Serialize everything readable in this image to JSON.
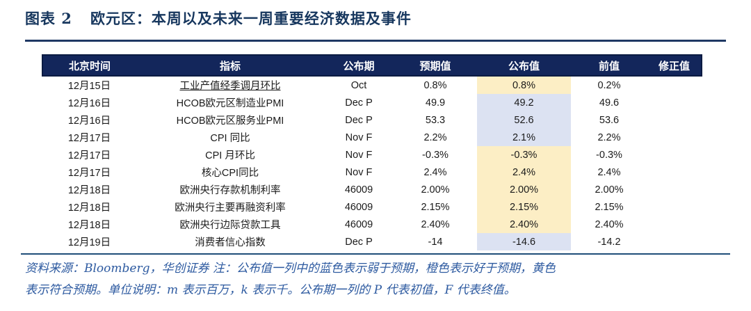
{
  "title": {
    "chart_label": "图表 2",
    "text": "欧元区：本周以及未来一周重要经济数据及事件"
  },
  "colors": {
    "header_bg": "#13265B",
    "title_text": "#17375E",
    "rule": "#1F3864",
    "footnote_text": "#2D5AA0",
    "highlight_meets_expectation": "#FCEEC5",
    "highlight_weaker_than_expectation": "#DCE2F2"
  },
  "table": {
    "columns": [
      "北京时间",
      "指标",
      "公布期",
      "预期值",
      "公布值",
      "前值",
      "修正值"
    ],
    "rows": [
      {
        "date": "12月15日",
        "indicator": "工业产值经季调月环比",
        "indicator_class": "u",
        "period": "Oct",
        "expected": "0.8%",
        "actual": "0.8%",
        "actual_class": "hl-yellow",
        "previous": "0.2%",
        "revised": ""
      },
      {
        "date": "12月16日",
        "indicator": "HCOB欧元区制造业PMI",
        "indicator_class": "",
        "period": "Dec P",
        "expected": "49.9",
        "actual": "49.2",
        "actual_class": "hl-blue",
        "previous": "49.6",
        "revised": ""
      },
      {
        "date": "12月16日",
        "indicator": "HCOB欧元区服务业PMI",
        "indicator_class": "",
        "period": "Dec P",
        "expected": "53.3",
        "actual": "52.6",
        "actual_class": "hl-blue",
        "previous": "53.6",
        "revised": ""
      },
      {
        "date": "12月17日",
        "indicator": "CPI 同比",
        "indicator_class": "",
        "period": "Nov F",
        "expected": "2.2%",
        "actual": "2.1%",
        "actual_class": "hl-blue",
        "previous": "2.2%",
        "revised": ""
      },
      {
        "date": "12月17日",
        "indicator": "CPI 月环比",
        "indicator_class": "",
        "period": "Nov F",
        "expected": "-0.3%",
        "actual": "-0.3%",
        "actual_class": "hl-yellow",
        "previous": "-0.3%",
        "revised": ""
      },
      {
        "date": "12月17日",
        "indicator": "核心CPI同比",
        "indicator_class": "",
        "period": "Nov F",
        "expected": "2.4%",
        "actual": "2.4%",
        "actual_class": "hl-yellow",
        "previous": "2.4%",
        "revised": ""
      },
      {
        "date": "12月18日",
        "indicator": "欧洲央行存款机制利率",
        "indicator_class": "",
        "period": "46009",
        "expected": "2.00%",
        "actual": "2.00%",
        "actual_class": "hl-yellow",
        "previous": "2.00%",
        "revised": ""
      },
      {
        "date": "12月18日",
        "indicator": "欧洲央行主要再融资利率",
        "indicator_class": "",
        "period": "46009",
        "expected": "2.15%",
        "actual": "2.15%",
        "actual_class": "hl-yellow",
        "previous": "2.15%",
        "revised": ""
      },
      {
        "date": "12月18日",
        "indicator": "欧洲央行边际贷款工具",
        "indicator_class": "",
        "period": "46009",
        "expected": "2.40%",
        "actual": "2.40%",
        "actual_class": "hl-yellow",
        "previous": "2.40%",
        "revised": ""
      },
      {
        "date": "12月19日",
        "indicator": "消费者信心指数",
        "indicator_class": "",
        "period": "Dec P",
        "expected": "-14",
        "actual": "-14.6",
        "actual_class": "hl-blue",
        "previous": "-14.2",
        "revised": ""
      }
    ]
  },
  "footnote": {
    "line1": "资料来源：Bloomberg，华创证券  注：公布值一列中的蓝色表示弱于预期，橙色表示好于预期，黄色",
    "line2": "表示符合预期。单位说明：m 表示百万，k 表示千。公布期一列的 P 代表初值，F 代表终值。"
  }
}
